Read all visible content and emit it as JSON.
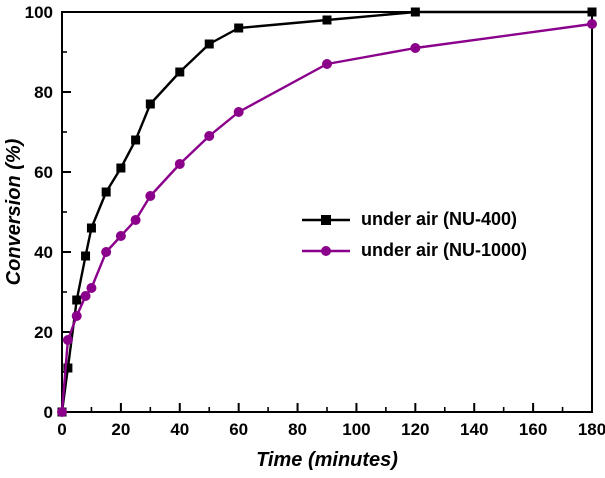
{
  "figure": {
    "background": "#ffffff"
  },
  "chart_data": {
    "type": "line",
    "title": "",
    "xlabel": "Time (minutes)",
    "ylabel": "Conversion (%)",
    "xlim": [
      0,
      180
    ],
    "ylim": [
      0,
      100
    ],
    "xticks": [
      0,
      20,
      40,
      60,
      80,
      100,
      120,
      140,
      160,
      180
    ],
    "yticks": [
      0,
      20,
      40,
      60,
      80,
      100
    ],
    "x_minor_step": 10,
    "y_minor_step": 10,
    "grid": false,
    "legend_position": "center-right",
    "axis_color": "#000000",
    "x": [
      0,
      2,
      5,
      8,
      10,
      15,
      20,
      25,
      30,
      40,
      50,
      60,
      90,
      120,
      180
    ],
    "series": [
      {
        "name": "under air (NU-400)",
        "color": "#000000",
        "marker": "square",
        "values": [
          0,
          11,
          28,
          39,
          46,
          55,
          61,
          68,
          77,
          85,
          92,
          96,
          98,
          100,
          100
        ]
      },
      {
        "name": "under air (NU-1000)",
        "color": "#8B008B",
        "marker": "circle",
        "values": [
          0,
          18,
          24,
          29,
          31,
          40,
          44,
          48,
          54,
          62,
          69,
          75,
          87,
          91,
          97
        ]
      }
    ]
  }
}
